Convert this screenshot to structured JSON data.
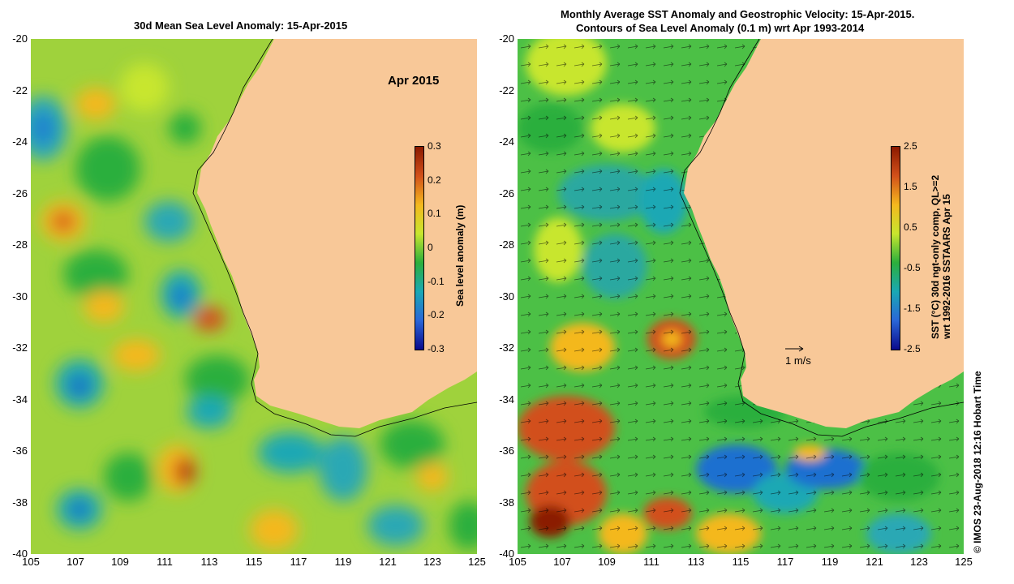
{
  "left_panel": {
    "title": "30d Mean Sea Level Anomaly: 15-Apr-2015",
    "inset_label": "Apr 2015",
    "colorbar": {
      "label": "Sea level anomaly (m)",
      "ticks": [
        "0.3",
        "0.2",
        "0.1",
        "0",
        "-0.1",
        "-0.2",
        "-0.3"
      ],
      "colors": [
        "#8b1a00",
        "#d2501a",
        "#f4b81e",
        "#c8e62e",
        "#2caf3c",
        "#1aa8b4",
        "#2a66d8",
        "#0a0a8c"
      ]
    },
    "y_ticks": [
      "-20",
      "-22",
      "-24",
      "-26",
      "-28",
      "-30",
      "-32",
      "-34",
      "-36",
      "-38",
      "-40"
    ],
    "x_ticks": [
      "105",
      "107",
      "109",
      "111",
      "113",
      "115",
      "117",
      "119",
      "121",
      "123",
      "125"
    ]
  },
  "right_panel": {
    "title_line1": "Monthly Average SST Anomaly  and Geostrophic Velocity: 15-Apr-2015.",
    "title_line2": "Contours of Sea Level Anomaly (0.1 m) wrt Apr 1993-2014",
    "scale_label": "1 m/s",
    "colorbar": {
      "label_line1": "SST (°C) 30d ngt-only comp, QL>=2",
      "label_line2": "wrt 1992-2016 SSTAARS Apr 15",
      "ticks": [
        "2.5",
        "1.5",
        "0.5",
        "-0.5",
        "-1.5",
        "-2.5"
      ],
      "colors": [
        "#8b1a00",
        "#d2501a",
        "#f4b81e",
        "#c8e62e",
        "#2caf3c",
        "#1aa8b4",
        "#2a66d8",
        "#0a0a8c"
      ]
    },
    "y_ticks": [
      "-20",
      "-22",
      "-24",
      "-26",
      "-28",
      "-30",
      "-32",
      "-34",
      "-36",
      "-38",
      "-40"
    ],
    "x_ticks": [
      "105",
      "107",
      "109",
      "111",
      "113",
      "115",
      "117",
      "119",
      "121",
      "123",
      "125"
    ]
  },
  "credit": "© IMOS 23-Aug-2018 12:16 Hobart Time",
  "colors": {
    "land": "#f8c898",
    "ocean_base_left": "#9fd23c",
    "ocean_base_right": "#4cc046"
  }
}
